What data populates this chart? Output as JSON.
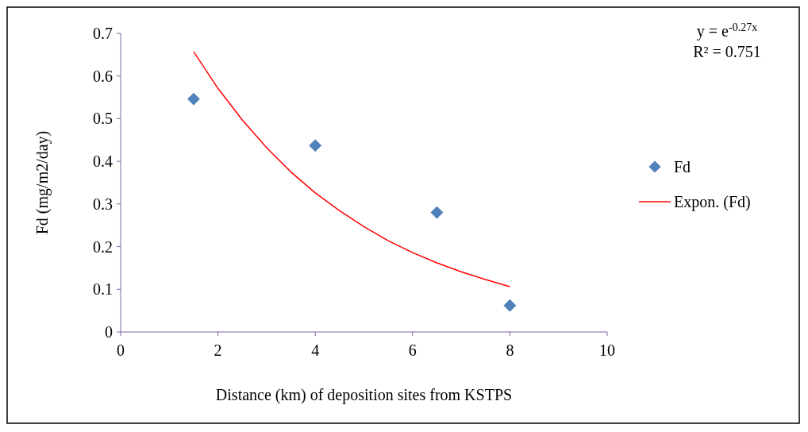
{
  "chart_data": {
    "type": "scatter",
    "xlabel": "Distance (km) of deposition sites from KSTPS",
    "ylabel": "Fd (mg/m2/day)",
    "xlim": [
      0,
      10
    ],
    "xticks": [
      0,
      2,
      4,
      6,
      8,
      10
    ],
    "ylim": [
      0,
      0.7
    ],
    "yticks": [
      0,
      0.1,
      0.2,
      0.3,
      0.4,
      0.5,
      0.6,
      0.7
    ],
    "grid": false,
    "legend": "right",
    "annotations": [
      "y = e$^{-0.27x}$",
      "R² = 0.751"
    ],
    "series": [
      {
        "name": "Fd",
        "marker": "diamond",
        "color": "#4f81bd",
        "x": [
          1.5,
          4,
          6.5,
          8
        ],
        "values": [
          0.546,
          0.437,
          0.28,
          0.062
        ]
      },
      {
        "name": "Expon. (Fd)",
        "type": "line",
        "marker": "none",
        "color": "#ff0000",
        "x": [
          1.5,
          2,
          2.5,
          3,
          3.5,
          4,
          4.5,
          5,
          5.5,
          6,
          6.5,
          7,
          7.5,
          8
        ],
        "values": [
          0.657,
          0.571,
          0.497,
          0.432,
          0.375,
          0.326,
          0.284,
          0.247,
          0.214,
          0.186,
          0.162,
          0.141,
          0.123,
          0.106
        ]
      }
    ]
  }
}
